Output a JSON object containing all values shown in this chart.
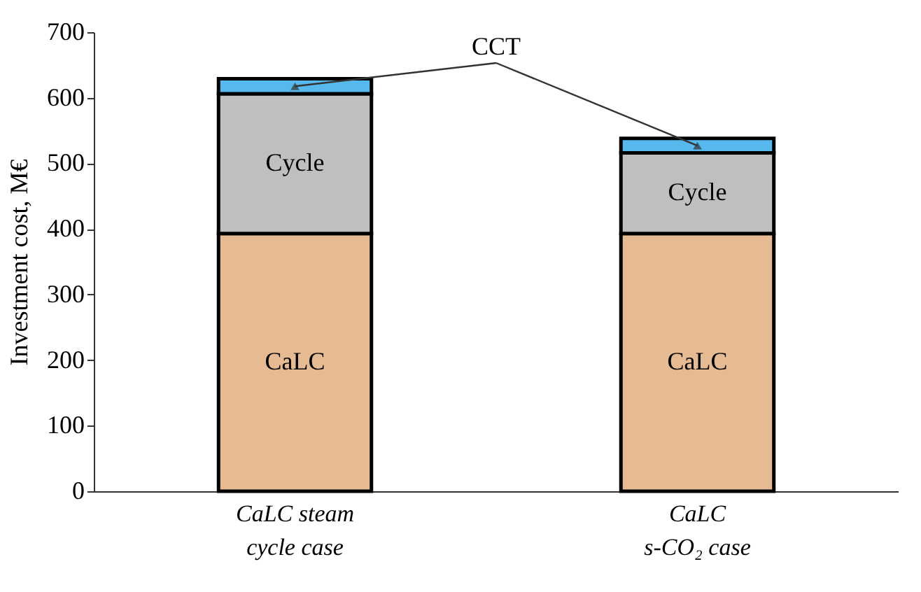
{
  "chart_data": {
    "type": "bar",
    "stacked": true,
    "ylabel": "Investment cost, M€",
    "categories": [
      "CaLC steam\ncycle case",
      "CaLC\ns-CO₂ case"
    ],
    "series": [
      {
        "name": "CaLC",
        "color": "#e6bb94",
        "values": [
          393,
          393
        ]
      },
      {
        "name": "Cycle",
        "color": "#bfbfbf",
        "values": [
          213,
          123
        ]
      },
      {
        "name": "CCT",
        "color": "#56b8ec",
        "values": [
          23,
          22
        ]
      }
    ],
    "ylim": [
      0,
      700
    ],
    "yticks": [
      0,
      100,
      200,
      300,
      400,
      500,
      600,
      700
    ],
    "grid": false,
    "legend": false
  }
}
